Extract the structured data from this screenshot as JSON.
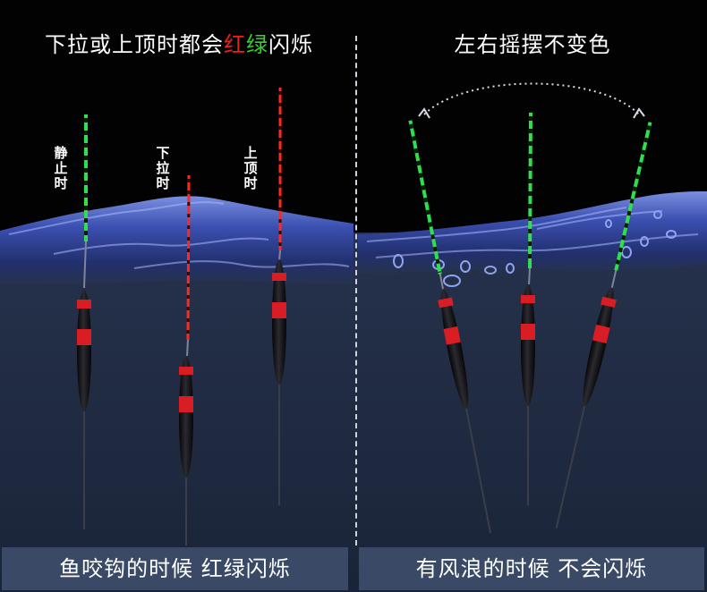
{
  "left_panel": {
    "title_prefix": "下拉或上顶时都会",
    "title_red": "红",
    "title_green": "绿",
    "title_suffix": "闪烁",
    "label_still": "静止时",
    "label_pull_down": "下拉时",
    "label_push_up": "上顶时",
    "caption": "鱼咬钩的时候 红绿闪烁"
  },
  "right_panel": {
    "title": "左右摇摆不变色",
    "caption": "有风浪的时候 不会闪烁"
  },
  "colors": {
    "background": "#020203",
    "water_deep": "#1f2b40",
    "water_surface": "#3c4fa0",
    "float_red": "#d81d24",
    "float_body": "#17171b",
    "tip_green": "#2ee04a",
    "tip_red": "#ff2a18",
    "caption_bar": "#3a4a66"
  }
}
